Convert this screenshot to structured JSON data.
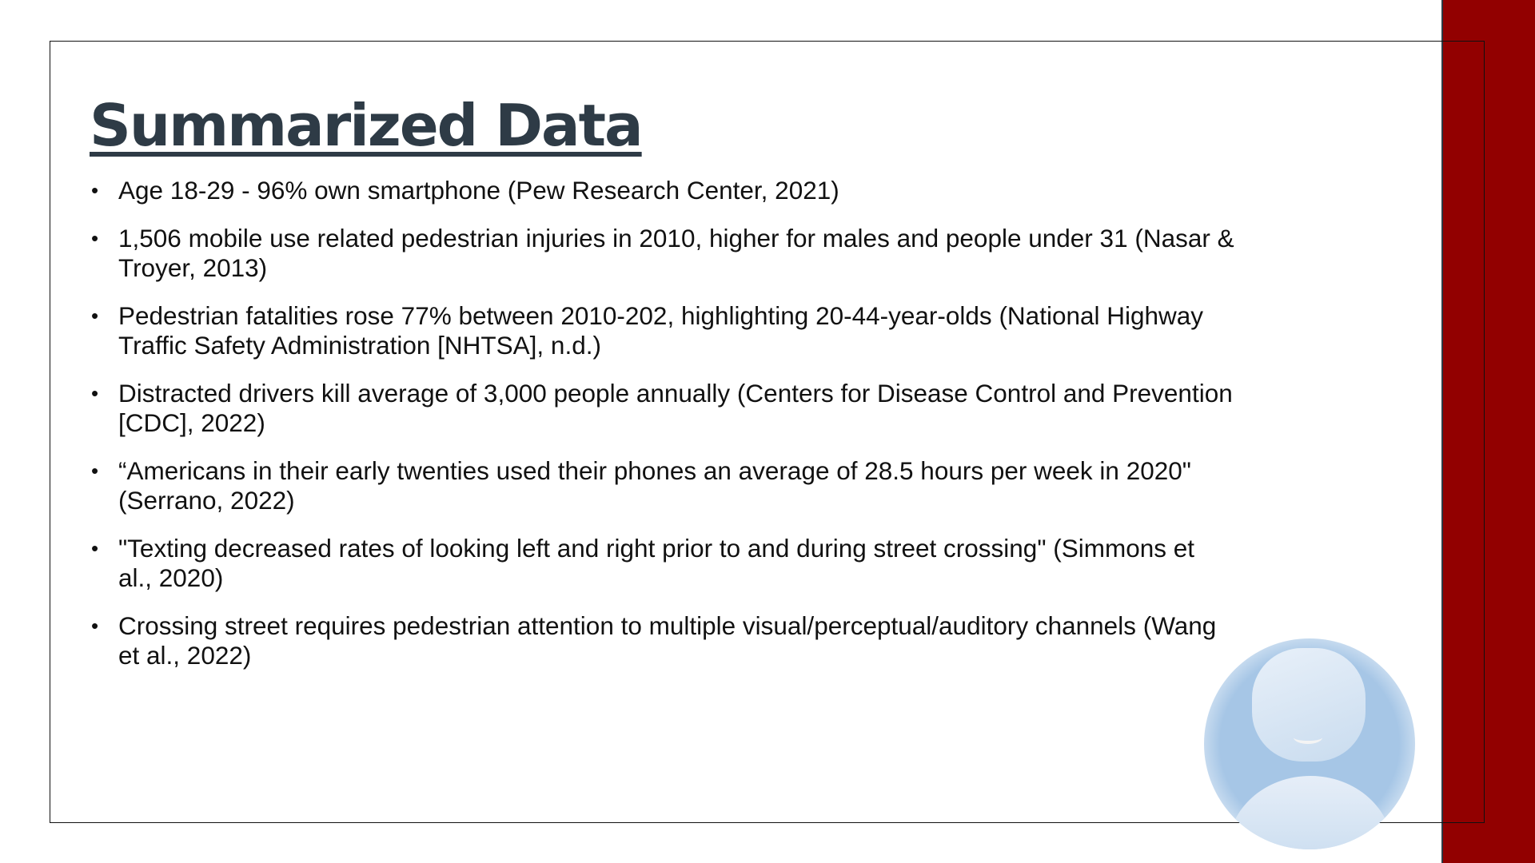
{
  "slide": {
    "title": "Summarized Data",
    "accent_color": "#920000",
    "title_color": "#2e3b46",
    "bullets": [
      {
        "lines": [
          "Age 18-29 - 96% own smartphone (Pew Research Center, 2021)"
        ]
      },
      {
        "lines": [
          "1,506 mobile use related pedestrian injuries in 2010, higher for males and people under 31 (Nasar &",
          "Troyer, 2013)"
        ]
      },
      {
        "lines": [
          "Pedestrian fatalities rose 77% between 2010-202, highlighting 20-44-year-olds (National Highway",
          "Traffic Safety Administration [NHTSA], n.d.)"
        ]
      },
      {
        "lines": [
          "Distracted drivers kill average of 3,000 people annually (Centers for Disease Control and Prevention",
          "[CDC], 2022)"
        ]
      },
      {
        "lines": [
          "“Americans in their early twenties used their phones an average of 28.5 hours per week in 2020\"",
          "(Serrano, 2022)"
        ]
      },
      {
        "lines": [
          "\"Texting decreased rates of looking left and right prior to and during street crossing\" (Simmons et",
          "al., 2020)"
        ]
      },
      {
        "lines": [
          "Crossing street requires pedestrian attention to multiple visual/perceptual/auditory channels (Wang",
          "et al., 2022)"
        ]
      }
    ]
  },
  "presenter": {
    "icon": "default-avatar-icon"
  }
}
